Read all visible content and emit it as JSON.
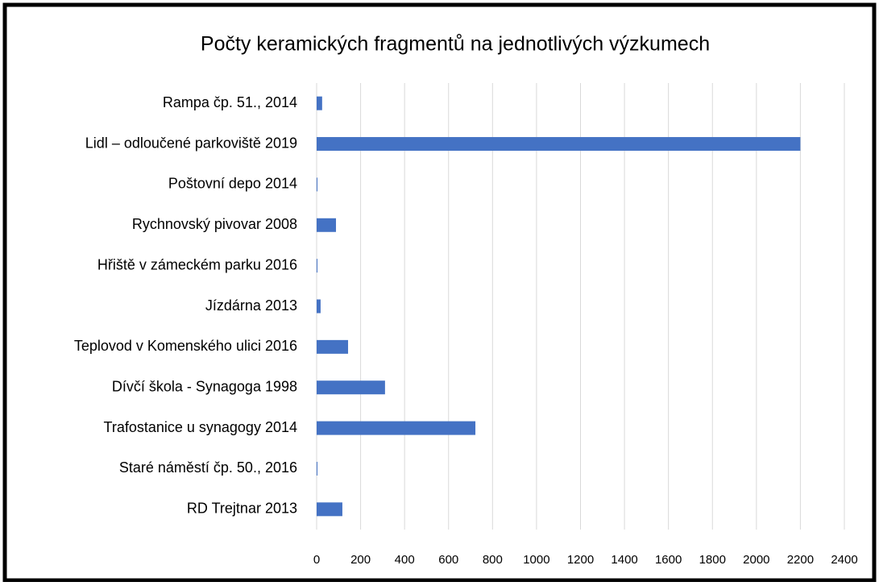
{
  "chart_data": {
    "type": "bar",
    "orientation": "horizontal",
    "title": "Počty keramických fragmentů na jednotlivých výzkumech",
    "categories": [
      "Rampa čp. 51., 2014",
      "Lidl – odloučené parkoviště 2019",
      "Poštovní depo 2014",
      "Rychnovský pivovar 2008",
      "Hřiště v zámeckém parku 2016",
      "Jízdárna 2013",
      "Teplovod v Komenského ulici 2016",
      "Dívčí škola - Synagoga 1998",
      "Trafostanice u synagogy 2014",
      "Staré náměstí čp. 50., 2016",
      "RD Trejtnar 2013"
    ],
    "values": [
      25,
      2200,
      3,
      88,
      3,
      18,
      143,
      311,
      722,
      3,
      117
    ],
    "color": "#4472c4",
    "xlim": [
      0,
      2400
    ],
    "xticks": [
      0,
      200,
      400,
      600,
      800,
      1000,
      1200,
      1400,
      1600,
      1800,
      2000,
      2200,
      2400
    ],
    "grid": true
  }
}
